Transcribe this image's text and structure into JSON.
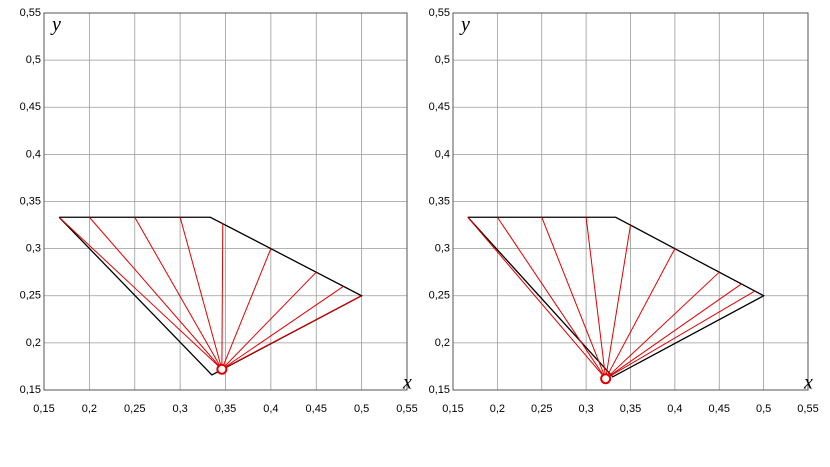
{
  "chart_data": [
    {
      "type": "rays",
      "x_label": "x",
      "y_label": "y",
      "xlim": [
        0.15,
        0.55
      ],
      "ylim": [
        0.15,
        0.55
      ],
      "xticks": [
        {
          "value": 0.15,
          "label": "0,15"
        },
        {
          "value": 0.2,
          "label": "0,2"
        },
        {
          "value": 0.25,
          "label": "0,25"
        },
        {
          "value": 0.3,
          "label": "0,3"
        },
        {
          "value": 0.35,
          "label": "0,35"
        },
        {
          "value": 0.4,
          "label": "0,4"
        },
        {
          "value": 0.45,
          "label": "0,45"
        },
        {
          "value": 0.5,
          "label": "0,5"
        },
        {
          "value": 0.55,
          "label": "0,55"
        }
      ],
      "yticks": [
        {
          "value": 0.15,
          "label": "0,15"
        },
        {
          "value": 0.2,
          "label": "0,2"
        },
        {
          "value": 0.25,
          "label": "0,25"
        },
        {
          "value": 0.3,
          "label": "0,3"
        },
        {
          "value": 0.35,
          "label": "0,35"
        },
        {
          "value": 0.4,
          "label": "0,4"
        },
        {
          "value": 0.45,
          "label": "0,45"
        },
        {
          "value": 0.5,
          "label": "0,5"
        },
        {
          "value": 0.55,
          "label": "0,55"
        }
      ],
      "grid": true,
      "polygon": {
        "color": "#000000",
        "x": [
          0.1667,
          0.3333,
          0.5,
          0.335,
          0.1667
        ],
        "y": [
          0.3333,
          0.3333,
          0.25,
          0.166,
          0.3333
        ]
      },
      "point": {
        "color": "#e00000",
        "x": 0.346,
        "y": 0.172
      },
      "rays": {
        "color": "#e00000",
        "x": [
          0.1667,
          0.2,
          0.25,
          0.3,
          0.347,
          0.4,
          0.45,
          0.48,
          0.5
        ],
        "y": [
          0.3333,
          0.3333,
          0.3333,
          0.3333,
          0.327,
          0.3,
          0.275,
          0.26,
          0.25
        ]
      }
    },
    {
      "type": "rays",
      "x_label": "x",
      "y_label": "y",
      "xlim": [
        0.15,
        0.55
      ],
      "ylim": [
        0.15,
        0.55
      ],
      "xticks": [
        {
          "value": 0.15,
          "label": "0,15"
        },
        {
          "value": 0.2,
          "label": "0,2"
        },
        {
          "value": 0.25,
          "label": "0,25"
        },
        {
          "value": 0.3,
          "label": "0,3"
        },
        {
          "value": 0.35,
          "label": "0,35"
        },
        {
          "value": 0.4,
          "label": "0,4"
        },
        {
          "value": 0.45,
          "label": "0,45"
        },
        {
          "value": 0.5,
          "label": "0,5"
        },
        {
          "value": 0.55,
          "label": "0,55"
        }
      ],
      "yticks": [
        {
          "value": 0.15,
          "label": "0,15"
        },
        {
          "value": 0.2,
          "label": "0,2"
        },
        {
          "value": 0.25,
          "label": "0,25"
        },
        {
          "value": 0.3,
          "label": "0,3"
        },
        {
          "value": 0.35,
          "label": "0,35"
        },
        {
          "value": 0.4,
          "label": "0,4"
        },
        {
          "value": 0.45,
          "label": "0,45"
        },
        {
          "value": 0.5,
          "label": "0,5"
        },
        {
          "value": 0.55,
          "label": "0,55"
        }
      ],
      "grid": true,
      "polygon": {
        "color": "#000000",
        "x": [
          0.1667,
          0.3333,
          0.5,
          0.33,
          0.1667
        ],
        "y": [
          0.3333,
          0.3333,
          0.25,
          0.164,
          0.3333
        ]
      },
      "point": {
        "color": "#e00000",
        "x": 0.322,
        "y": 0.162
      },
      "rays": {
        "color": "#e00000",
        "x": [
          0.1667,
          0.2,
          0.25,
          0.3,
          0.35,
          0.4,
          0.45,
          0.475,
          0.49
        ],
        "y": [
          0.3333,
          0.3333,
          0.3333,
          0.3333,
          0.325,
          0.3,
          0.275,
          0.2625,
          0.255
        ]
      }
    }
  ]
}
